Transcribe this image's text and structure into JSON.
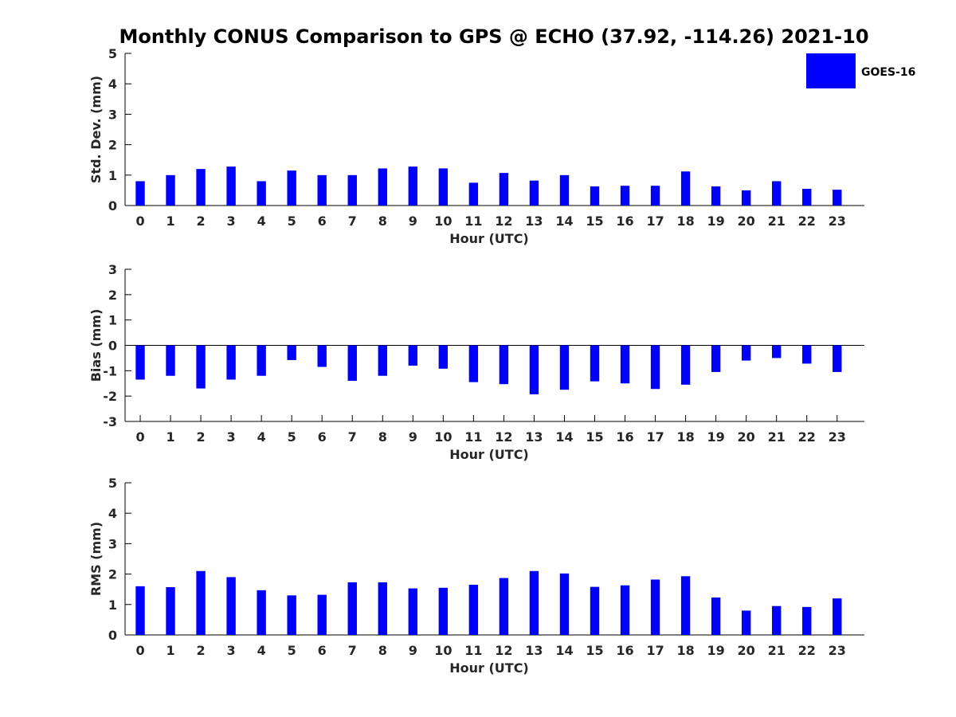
{
  "chart_data": {
    "title": "Monthly CONUS Comparison to GPS @ ECHO (37.92, -114.26) 2021-10",
    "legend": {
      "label": "GOES-16",
      "position": "top-right"
    },
    "bar_color": "#0000ff",
    "panels": [
      {
        "type": "bar",
        "ylabel": "Std. Dev. (mm)",
        "xlabel": "Hour (UTC)",
        "ylim": [
          0,
          5
        ],
        "yticks": [
          0,
          1,
          2,
          3,
          4,
          5
        ],
        "categories": [
          "0",
          "1",
          "2",
          "3",
          "4",
          "5",
          "6",
          "7",
          "8",
          "9",
          "10",
          "11",
          "12",
          "13",
          "14",
          "15",
          "16",
          "17",
          "18",
          "19",
          "20",
          "21",
          "22",
          "23"
        ],
        "series": [
          {
            "name": "GOES-16",
            "values": [
              0.8,
              1.0,
              1.2,
              1.28,
              0.8,
              1.15,
              1.0,
              1.0,
              1.22,
              1.28,
              1.22,
              0.75,
              1.07,
              0.82,
              1.0,
              0.63,
              0.65,
              0.65,
              1.12,
              0.63,
              0.5,
              0.8,
              0.55,
              0.52
            ]
          }
        ]
      },
      {
        "type": "bar",
        "ylabel": "Bias (mm)",
        "xlabel": "Hour (UTC)",
        "ylim": [
          -3,
          3
        ],
        "yticks": [
          -3,
          -2,
          -1,
          0,
          1,
          2,
          3
        ],
        "zero_line": true,
        "categories": [
          "0",
          "1",
          "2",
          "3",
          "4",
          "5",
          "6",
          "7",
          "8",
          "9",
          "10",
          "11",
          "12",
          "13",
          "14",
          "15",
          "16",
          "17",
          "18",
          "19",
          "20",
          "21",
          "22",
          "23"
        ],
        "series": [
          {
            "name": "GOES-16",
            "values": [
              -1.35,
              -1.2,
              -1.7,
              -1.35,
              -1.2,
              -0.58,
              -0.85,
              -1.4,
              -1.2,
              -0.8,
              -0.92,
              -1.45,
              -1.53,
              -1.93,
              -1.75,
              -1.42,
              -1.5,
              -1.72,
              -1.55,
              -1.05,
              -0.6,
              -0.5,
              -0.72,
              -1.05
            ]
          }
        ]
      },
      {
        "type": "bar",
        "ylabel": "RMS (mm)",
        "xlabel": "Hour (UTC)",
        "ylim": [
          0,
          5
        ],
        "yticks": [
          0,
          1,
          2,
          3,
          4,
          5
        ],
        "categories": [
          "0",
          "1",
          "2",
          "3",
          "4",
          "5",
          "6",
          "7",
          "8",
          "9",
          "10",
          "11",
          "12",
          "13",
          "14",
          "15",
          "16",
          "17",
          "18",
          "19",
          "20",
          "21",
          "22",
          "23"
        ],
        "series": [
          {
            "name": "GOES-16",
            "values": [
              1.6,
              1.57,
              2.1,
              1.9,
              1.47,
              1.3,
              1.32,
              1.73,
              1.73,
              1.53,
              1.55,
              1.65,
              1.87,
              2.1,
              2.02,
              1.58,
              1.63,
              1.82,
              1.93,
              1.23,
              0.8,
              0.95,
              0.92,
              1.2
            ]
          }
        ]
      }
    ]
  }
}
